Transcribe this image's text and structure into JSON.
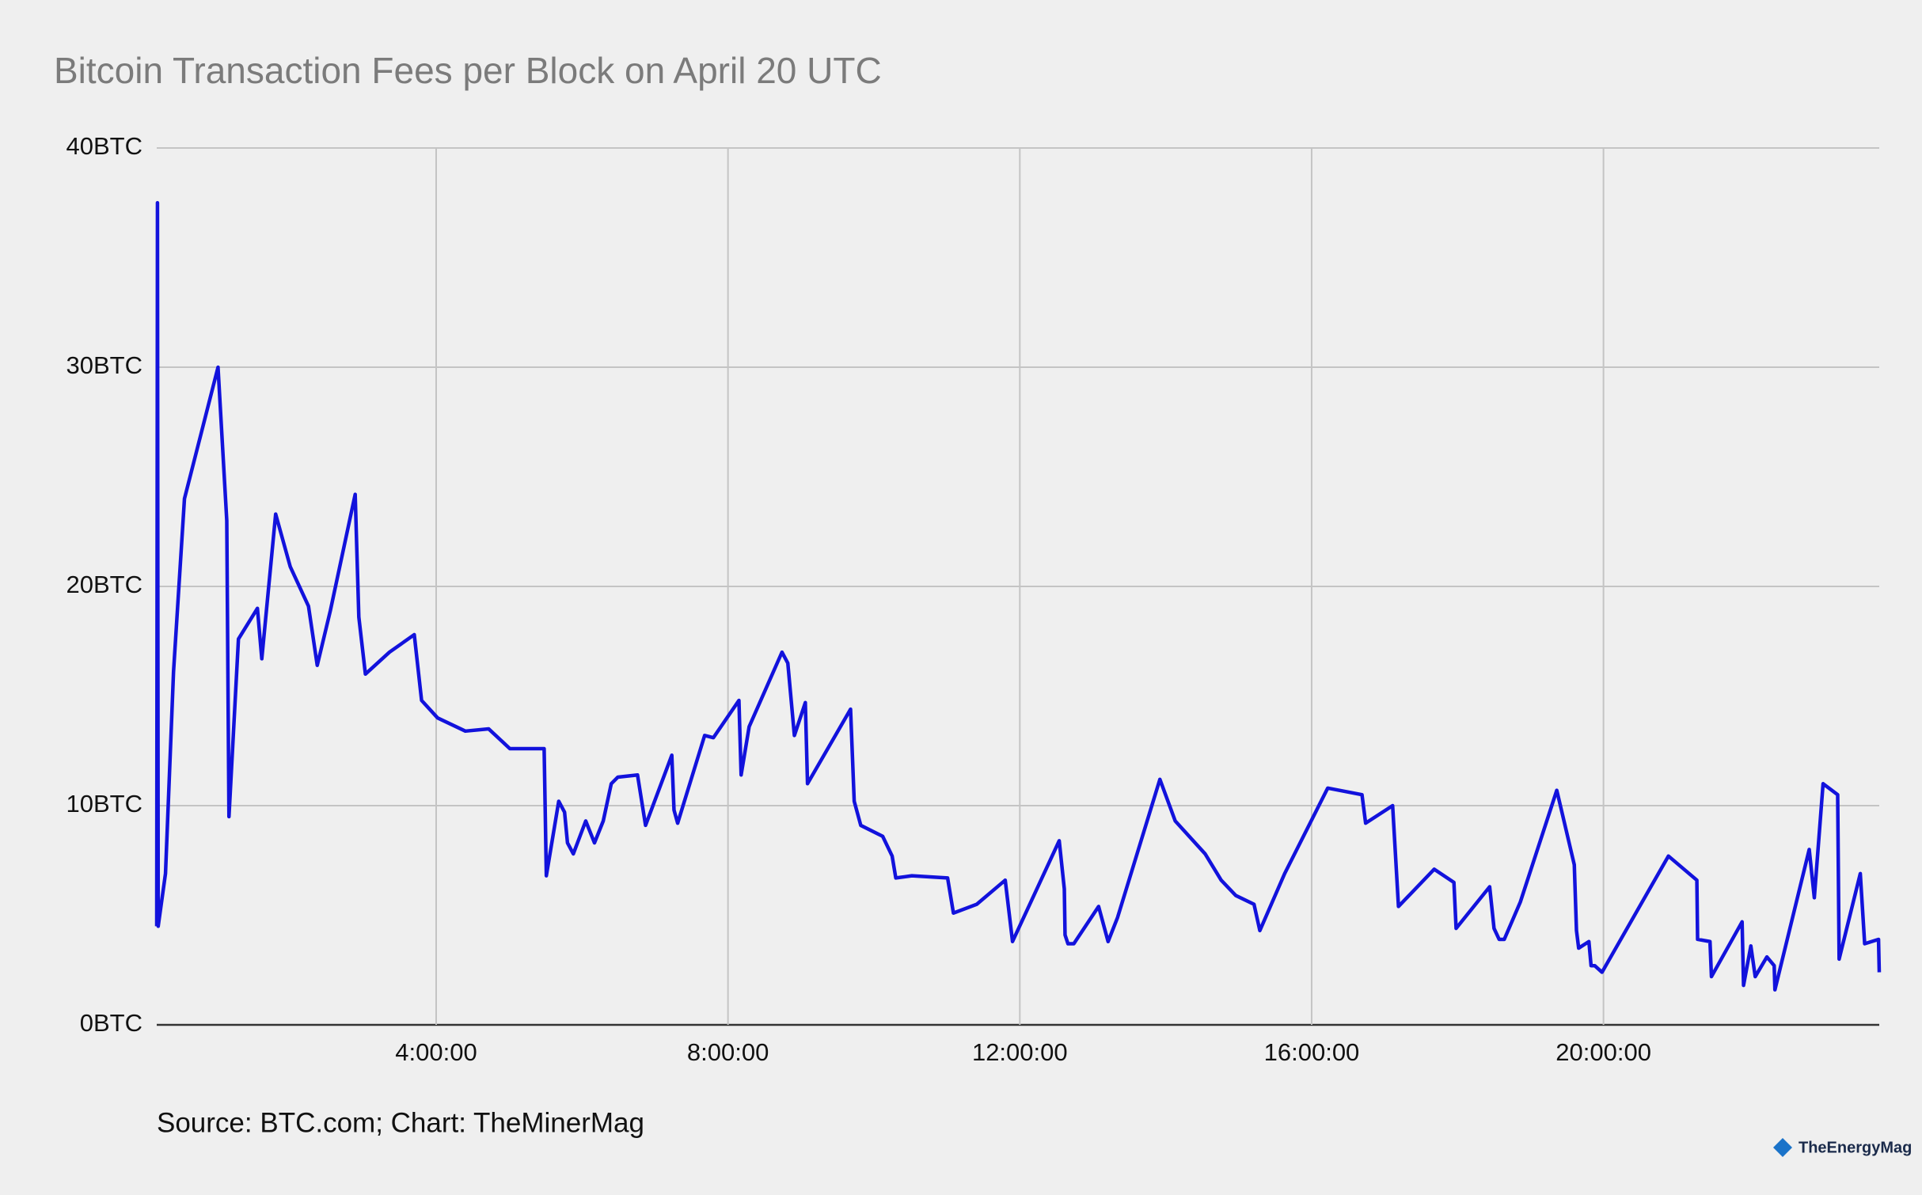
{
  "chart_data": {
    "type": "line",
    "title": "Bitcoin Transaction Fees per Block on April 20 UTC",
    "source": "Source: BTC.com; Chart: TheMinerMag",
    "watermark": "TheEnergyMag",
    "color": "#1212dc",
    "grid": true,
    "xlim": [
      0.17,
      23.78
    ],
    "ylim": [
      0,
      40
    ],
    "xticks": [
      {
        "value": 4,
        "label": "4:00:00"
      },
      {
        "value": 8,
        "label": "8:00:00"
      },
      {
        "value": 12,
        "label": "12:00:00"
      },
      {
        "value": 16,
        "label": "16:00:00"
      },
      {
        "value": 20,
        "label": "20:00:00"
      }
    ],
    "yticks": [
      {
        "value": 0,
        "label": "0BTC"
      },
      {
        "value": 10,
        "label": "10BTC"
      },
      {
        "value": 20,
        "label": "20BTC"
      },
      {
        "value": 30,
        "label": "30BTC"
      },
      {
        "value": 40,
        "label": "40BTC"
      }
    ],
    "x": [
      0.17,
      0.18,
      0.19,
      0.29,
      0.4,
      0.55,
      1.01,
      1.13,
      1.16,
      1.29,
      1.55,
      1.61,
      1.8,
      2.0,
      2.25,
      2.37,
      2.55,
      2.89,
      2.94,
      3.03,
      3.36,
      3.7,
      3.8,
      4.02,
      4.4,
      4.72,
      5.01,
      5.28,
      5.48,
      5.51,
      5.68,
      5.76,
      5.8,
      5.88,
      6.05,
      6.17,
      6.29,
      6.4,
      6.49,
      6.76,
      6.87,
      7.23,
      7.26,
      7.31,
      7.68,
      7.8,
      8.15,
      8.18,
      8.29,
      8.74,
      8.82,
      8.91,
      9.06,
      9.09,
      9.68,
      9.73,
      9.82,
      10.12,
      10.25,
      10.3,
      10.52,
      11.01,
      11.09,
      11.41,
      11.8,
      11.9,
      12.54,
      12.61,
      12.62,
      12.66,
      12.74,
      13.08,
      13.21,
      13.34,
      13.92,
      14.13,
      14.54,
      14.76,
      14.96,
      15.21,
      15.29,
      15.63,
      16.22,
      16.69,
      16.74,
      17.11,
      17.19,
      17.68,
      17.95,
      17.98,
      18.44,
      18.5,
      18.57,
      18.64,
      18.86,
      19.36,
      19.6,
      19.63,
      19.66,
      19.8,
      19.83,
      19.88,
      19.98,
      20.89,
      21.28,
      21.29,
      21.46,
      21.48,
      21.9,
      21.92,
      22.02,
      22.08,
      22.24,
      22.34,
      22.35,
      22.82,
      22.89,
      23.01,
      23.21,
      23.23,
      23.52,
      23.58,
      23.77,
      23.78
    ],
    "values": [
      4.5,
      37.5,
      4.5,
      6.9,
      16.1,
      24,
      30,
      23,
      9.5,
      17.6,
      19,
      16.7,
      23.3,
      20.9,
      19.1,
      16.4,
      18.9,
      24.2,
      18.6,
      16,
      17,
      17.8,
      14.8,
      14,
      13.4,
      13.5,
      12.6,
      12.6,
      12.6,
      6.8,
      10.2,
      9.7,
      8.3,
      7.8,
      9.3,
      8.3,
      9.3,
      11,
      11.3,
      11.4,
      9.1,
      12.3,
      9.8,
      9.2,
      13.2,
      13.1,
      14.8,
      11.4,
      13.6,
      17,
      16.5,
      13.2,
      14.7,
      11,
      14.4,
      10.2,
      9.1,
      8.6,
      7.7,
      6.7,
      6.8,
      6.7,
      5.1,
      5.5,
      6.6,
      3.8,
      8.4,
      6.2,
      4.1,
      3.7,
      3.7,
      5.4,
      3.8,
      4.9,
      11.2,
      9.3,
      7.8,
      6.6,
      5.9,
      5.5,
      4.3,
      6.9,
      10.8,
      10.5,
      9.2,
      10,
      5.4,
      7.1,
      6.5,
      4.4,
      6.3,
      4.4,
      3.9,
      3.9,
      5.6,
      10.7,
      7.3,
      4.3,
      3.5,
      3.8,
      2.7,
      2.7,
      2.4,
      7.7,
      6.6,
      3.9,
      3.8,
      2.2,
      4.7,
      1.8,
      3.6,
      2.2,
      3.1,
      2.7,
      1.6,
      8,
      5.8,
      11,
      10.5,
      3,
      6.9,
      3.7,
      3.9,
      2.4
    ]
  }
}
